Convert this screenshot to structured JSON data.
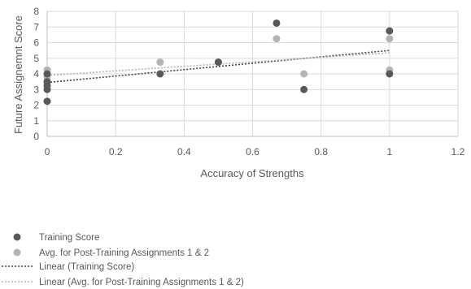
{
  "chart_data": {
    "type": "scatter",
    "xlabel": "Accuracy of Strengths",
    "ylabel": "Future Assignemnt Score",
    "xlim": [
      0,
      1.2
    ],
    "ylim": [
      0,
      8
    ],
    "x_ticks": [
      "0",
      "0.2",
      "0.4",
      "0.6",
      "0.8",
      "1",
      "1.2"
    ],
    "y_ticks": [
      "0",
      "1",
      "2",
      "3",
      "4",
      "5",
      "6",
      "7",
      "8"
    ],
    "grid": true,
    "legend_position": "bottom",
    "series": [
      {
        "name": "Training Score",
        "color": "#595959",
        "marker": "circle",
        "points": [
          {
            "x": 0,
            "y": 2.25
          },
          {
            "x": 0,
            "y": 3.0
          },
          {
            "x": 0,
            "y": 3.25
          },
          {
            "x": 0,
            "y": 3.5
          },
          {
            "x": 0,
            "y": 4.0
          },
          {
            "x": 0.33,
            "y": 4.0
          },
          {
            "x": 0.5,
            "y": 4.75
          },
          {
            "x": 0.67,
            "y": 7.25
          },
          {
            "x": 0.75,
            "y": 3.0
          },
          {
            "x": 1,
            "y": 4.0
          },
          {
            "x": 1,
            "y": 6.75
          }
        ]
      },
      {
        "name": "Avg. for Post-Training Assignments 1 & 2",
        "color": "#b4b4b4",
        "marker": "circle",
        "points": [
          {
            "x": 0,
            "y": 3.5
          },
          {
            "x": 0,
            "y": 3.75
          },
          {
            "x": 0,
            "y": 3.9
          },
          {
            "x": 0,
            "y": 4.0
          },
          {
            "x": 0,
            "y": 4.25
          },
          {
            "x": 0.33,
            "y": 4.75
          },
          {
            "x": 0.5,
            "y": 4.75
          },
          {
            "x": 0.67,
            "y": 6.25
          },
          {
            "x": 0.75,
            "y": 4.0
          },
          {
            "x": 1,
            "y": 4.25
          },
          {
            "x": 1,
            "y": 6.25
          }
        ]
      }
    ],
    "trendlines": [
      {
        "name": "Linear (Training Score)",
        "type": "linear",
        "color": "#404040",
        "from": [
          0,
          3.45
        ],
        "to": [
          1,
          5.5
        ]
      },
      {
        "name": "Linear (Avg. for Post-Training Assignments 1 & 2)",
        "type": "linear",
        "color": "#b4b4b4",
        "from": [
          0,
          3.9
        ],
        "to": [
          1,
          5.35
        ]
      }
    ]
  }
}
